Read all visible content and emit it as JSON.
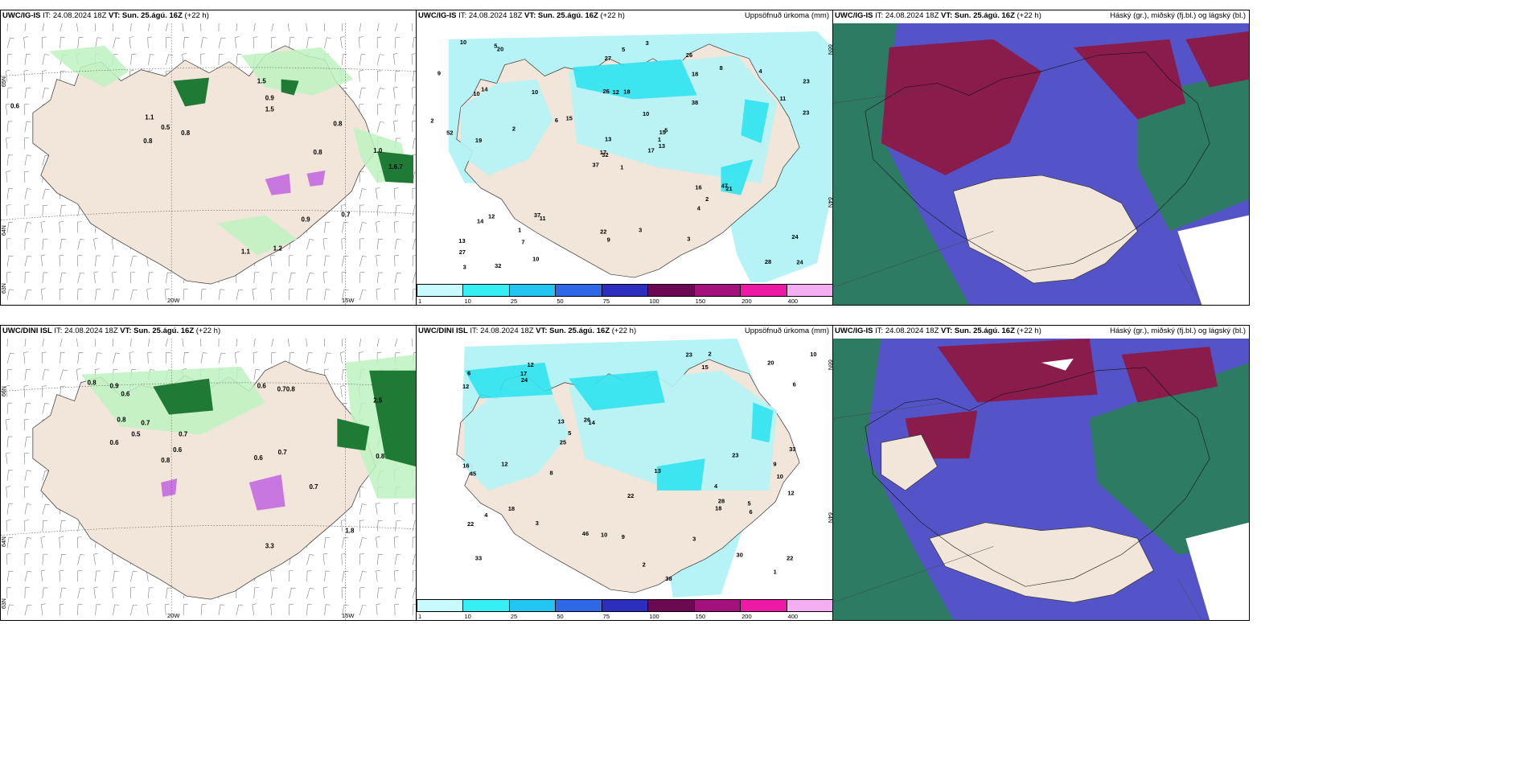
{
  "colors": {
    "land": "#f1e6d9",
    "precip_light": "#b5f3f6",
    "precip_mid": "#2fe3ef",
    "green_light": "#bdf2bf",
    "green_dark": "#0e5a22",
    "cloud_high": "#2a7f58",
    "cloud_mid": "#8a1c4c",
    "cloud_low": "#5454c8"
  },
  "panels": {
    "p1": {
      "model": "UWC/IG-IS",
      "it_label": "IT:",
      "it_value": "24.08.2024 18Z",
      "vt_label": "VT:",
      "vt_value": "Sun. 25.ágú. 16Z",
      "offset": "(+22 h)",
      "right_title": "",
      "lat_labels": [
        "65N",
        "64N",
        "63N"
      ],
      "lon_labels": [
        "20W",
        "15W"
      ]
    },
    "p2": {
      "model": "UWC/IG-IS",
      "it_label": "IT:",
      "it_value": "24.08.2024 18Z",
      "vt_label": "VT:",
      "vt_value": "Sun. 25.ágú. 16Z",
      "offset": "(+22 h)",
      "right_title": "Uppsöfnuð úrkoma (mm)",
      "lat_labels_right": [
        "66N",
        "64N"
      ],
      "values": [
        "1",
        "10",
        "32",
        "13",
        "15",
        "11",
        "26",
        "18",
        "18",
        "17",
        "20",
        "24",
        "19",
        "23",
        "37",
        "38",
        "32",
        "26",
        "10",
        "12",
        "15",
        "27",
        "7",
        "12",
        "5",
        "21",
        "14",
        "27",
        "52",
        "16",
        "23",
        "17",
        "22",
        "13",
        "10",
        "8",
        "37",
        "28",
        "24",
        "47",
        "3",
        "6",
        "2",
        "4",
        "10",
        "2",
        "1",
        "3",
        "9",
        "13",
        "14",
        "11",
        "9",
        "2",
        "3",
        "1",
        "5",
        "10",
        "3",
        "4",
        "5"
      ],
      "colorbar": [
        "1",
        "10",
        "25",
        "50",
        "75",
        "100",
        "150",
        "200",
        "400"
      ]
    },
    "p3": {
      "model": "UWC/IG-IS",
      "it_label": "IT:",
      "it_value": "24.08.2024 18Z",
      "vt_label": "VT:",
      "vt_value": "Sun. 25.ágú. 16Z",
      "offset": "(+22 h)",
      "right_title": "Háský (gr.), miðský (fj.bl.) og lágský (bl.)"
    },
    "p4": {
      "model": "UWC/DINI ISL",
      "it_label": "IT:",
      "it_value": "24.08.2024 18Z",
      "vt_label": "VT:",
      "vt_value": "Sun. 25.ágú. 16Z",
      "offset": "(+22 h)",
      "right_title": "",
      "lat_labels": [
        "66N",
        "64N",
        "63N"
      ],
      "lon_labels": [
        "20W",
        "15W"
      ]
    },
    "p5": {
      "model": "UWC/DINI ISL",
      "it_label": "IT:",
      "it_value": "24.08.2024 18Z",
      "vt_label": "VT:",
      "vt_value": "Sun. 25.ágú. 16Z",
      "offset": "(+22 h)",
      "right_title": "Uppsöfnuð úrkoma (mm)",
      "lat_labels_right": [
        "66N",
        "64N"
      ],
      "values": [
        "4",
        "10",
        "33",
        "12",
        "14",
        "30",
        "22",
        "15",
        "13",
        "38",
        "12",
        "16",
        "6",
        "22",
        "46",
        "33",
        "22",
        "13",
        "26",
        "18",
        "10",
        "20",
        "25",
        "12",
        "23",
        "17",
        "28",
        "45",
        "24",
        "23",
        "2",
        "3",
        "5",
        "8",
        "9",
        "6",
        "18",
        "12",
        "9",
        "4",
        "6",
        "2",
        "1",
        "10",
        "5",
        "3"
      ],
      "colorbar": [
        "1",
        "10",
        "25",
        "50",
        "75",
        "100",
        "150",
        "200",
        "400"
      ]
    },
    "p6": {
      "model": "UWC/IG-IS",
      "it_label": "IT:",
      "it_value": "24.08.2024 18Z",
      "vt_label": "VT:",
      "vt_value": "Sun. 25.ágú. 16Z",
      "offset": "(+22 h)",
      "right_title": "Háský (gr.), miðský (fj.bl.) og lágský (bl.)"
    }
  },
  "colorbar_colors": [
    "#c6fafd",
    "#35eff4",
    "#22c6f0",
    "#2e68e6",
    "#2c2fbe",
    "#6b0a52",
    "#a3117d",
    "#ee1aa6",
    "#f4aef2"
  ]
}
